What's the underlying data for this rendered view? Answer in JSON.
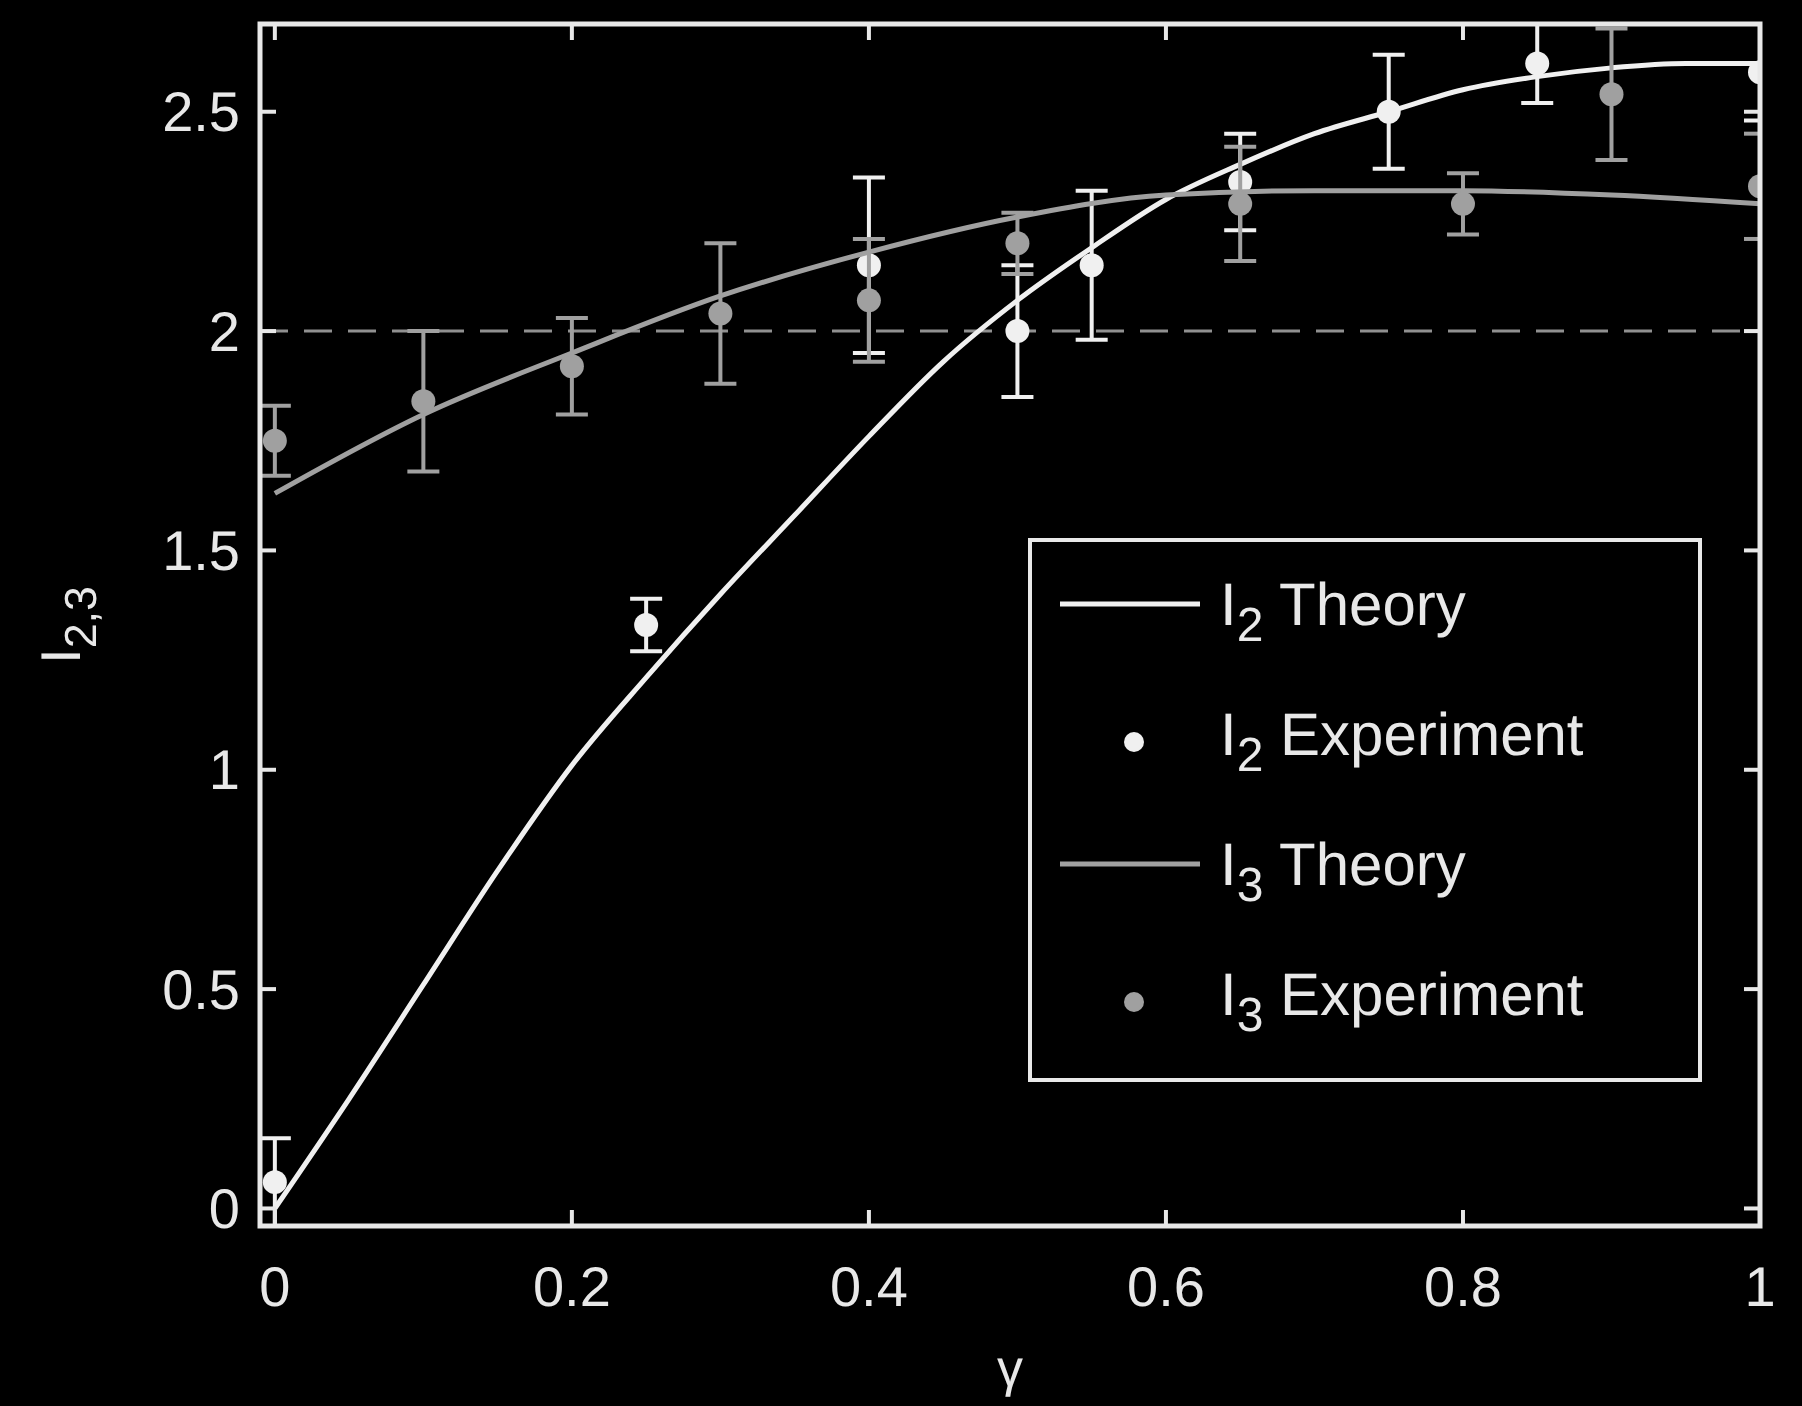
{
  "chart_data": {
    "type": "line",
    "xlabel": "γ",
    "ylabel": "I$_{2,3}$",
    "xlim": [
      -0.01,
      1.0
    ],
    "ylim": [
      -0.04,
      2.7
    ],
    "xticks": [
      0,
      0.2,
      0.4,
      0.6,
      0.8,
      1
    ],
    "yticks": [
      0,
      0.5,
      1,
      1.5,
      2,
      2.5
    ],
    "grid": false,
    "legend": "right",
    "ref_lines": [
      {
        "axis": "y",
        "value": 2,
        "color": "#909090",
        "line_style": "dashed"
      }
    ],
    "series": [
      {
        "name": "I$_{2}$ Theory",
        "color": "#f0f0f0",
        "marker": "none",
        "x": [
          0,
          0.05,
          0.1,
          0.15,
          0.2,
          0.25,
          0.3,
          0.35,
          0.4,
          0.45,
          0.5,
          0.55,
          0.6,
          0.65,
          0.7,
          0.75,
          0.8,
          0.85,
          0.9,
          0.95,
          1
        ],
        "values": [
          0,
          0.25,
          0.51,
          0.77,
          1.01,
          1.21,
          1.4,
          1.58,
          1.76,
          1.93,
          2.07,
          2.19,
          2.3,
          2.38,
          2.45,
          2.5,
          2.55,
          2.58,
          2.6,
          2.61,
          2.61
        ]
      },
      {
        "name": "I$_{2}$ Experiment",
        "type": "scatter",
        "color": "#f0f0f0",
        "marker": "circle",
        "x": [
          0,
          0.25,
          0.4,
          0.5,
          0.55,
          0.65,
          0.75,
          0.85,
          1
        ],
        "values": [
          0.06,
          1.33,
          2.15,
          2.0,
          2.15,
          2.34,
          2.5,
          2.61,
          2.59
        ],
        "errors": [
          0.1,
          0.06,
          0.2,
          0.15,
          0.17,
          0.11,
          0.13,
          0.09,
          0.11
        ]
      },
      {
        "name": "I$_{3}$ Theory",
        "color": "#a0a0a0",
        "marker": "none",
        "x": [
          0,
          0.1,
          0.2,
          0.3,
          0.4,
          0.5,
          0.6,
          0.7,
          0.8,
          0.9,
          1
        ],
        "values": [
          1.63,
          1.81,
          1.95,
          2.08,
          2.18,
          2.26,
          2.31,
          2.32,
          2.32,
          2.31,
          2.29
        ]
      },
      {
        "name": "I$_{3}$ Experiment",
        "type": "scatter",
        "color": "#a0a0a0",
        "marker": "circle",
        "x": [
          0,
          0.1,
          0.2,
          0.3,
          0.4,
          0.5,
          0.65,
          0.8,
          0.9,
          1
        ],
        "values": [
          1.75,
          1.84,
          1.92,
          2.04,
          2.07,
          2.2,
          2.29,
          2.29,
          2.54,
          2.33
        ],
        "errors": [
          0.08,
          0.16,
          0.11,
          0.16,
          0.14,
          0.07,
          0.13,
          0.07,
          0.15,
          0.12
        ]
      }
    ]
  }
}
